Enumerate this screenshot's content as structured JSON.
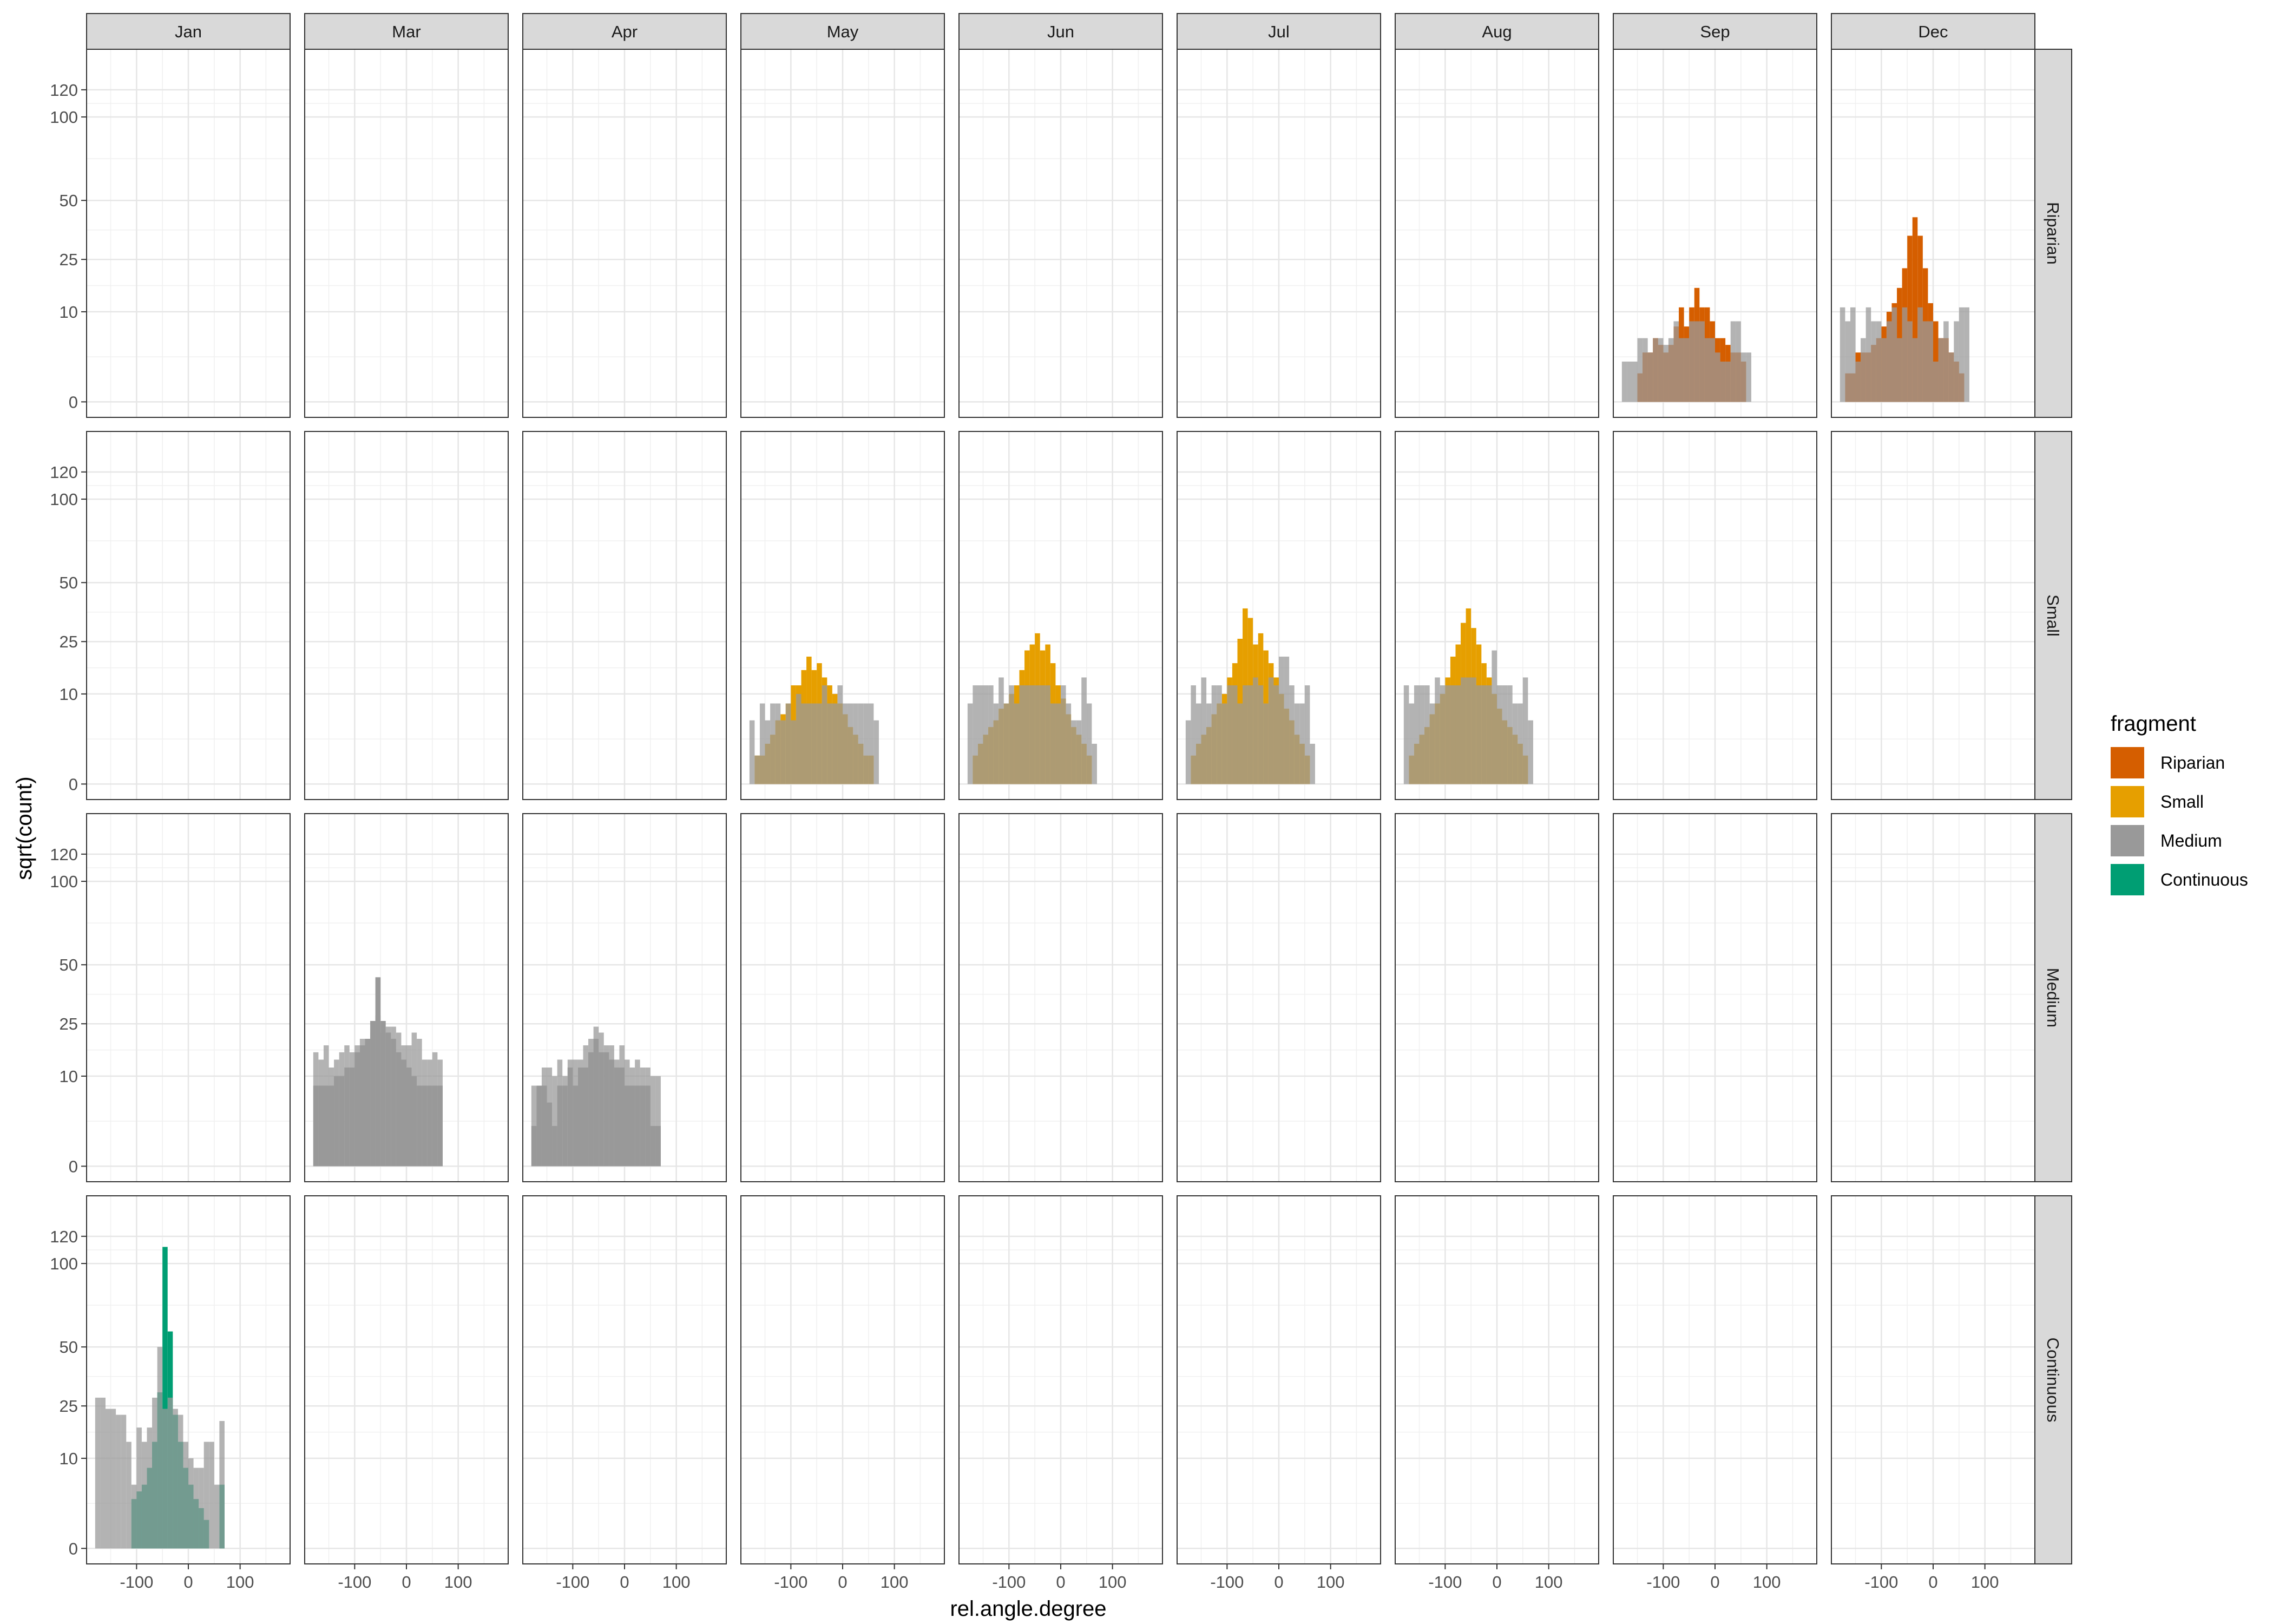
{
  "chart_data": {
    "type": "histogram-facet",
    "xlabel": "rel.angle.degree",
    "ylabel": "sqrt(count)",
    "y_scale": "sqrt",
    "grid": true,
    "legend_position": "right",
    "legend": {
      "title": "fragment",
      "items": [
        {
          "name": "Riparian",
          "color": "#D55E00"
        },
        {
          "name": "Small",
          "color": "#E69F00"
        },
        {
          "name": "Medium",
          "color": "#999999"
        },
        {
          "name": "Continuous",
          "color": "#009E73"
        }
      ]
    },
    "background_series_color": "#999999",
    "columns": [
      "Jan",
      "Mar",
      "Apr",
      "May",
      "Jun",
      "Jul",
      "Aug",
      "Sep",
      "Dec"
    ],
    "rows": [
      "Riparian",
      "Small",
      "Medium",
      "Continuous"
    ],
    "x_ticks": [
      -100,
      0,
      100
    ],
    "x_tick_labels": [
      "-100",
      "0",
      "100"
    ],
    "xlim": [
      -180,
      180
    ],
    "y_ticks": [
      0,
      10,
      25,
      50,
      100,
      120
    ],
    "y_tick_labels": [
      "0",
      "10",
      "25",
      "50",
      "100",
      "120"
    ],
    "ylim": [
      0,
      140
    ],
    "bin_width": 10,
    "bin_start": -180,
    "panels": [
      {
        "row": "Riparian",
        "col": "Sep",
        "fragment": "Riparian",
        "all": [
          2,
          2,
          2,
          5,
          5,
          3,
          5,
          5,
          4,
          5,
          8,
          5,
          5,
          8,
          8,
          8,
          5,
          5,
          3,
          2,
          2,
          8,
          8,
          3,
          3
        ],
        "own": [
          0,
          0,
          0,
          1,
          3,
          3,
          5,
          4,
          3,
          4,
          7,
          11,
          7,
          11,
          16,
          11,
          11,
          8,
          5,
          5,
          4,
          3,
          3,
          2,
          0
        ]
      },
      {
        "row": "Riparian",
        "col": "Dec",
        "fragment": "Riparian",
        "all": [
          11,
          8,
          11,
          2,
          5,
          11,
          8,
          8,
          5,
          8,
          11,
          5,
          11,
          8,
          5,
          11,
          8,
          8,
          2,
          5,
          8,
          3,
          8,
          11,
          11
        ],
        "own": [
          0,
          1,
          1,
          3,
          3,
          3,
          4,
          5,
          7,
          10,
          12,
          16,
          22,
          34,
          42,
          34,
          22,
          12,
          8,
          5,
          5,
          3,
          2,
          1,
          0
        ]
      },
      {
        "row": "Small",
        "col": "May",
        "fragment": "Small",
        "all": [
          5,
          1,
          8,
          5,
          8,
          8,
          5,
          8,
          5,
          10,
          8,
          8,
          8,
          8,
          12,
          8,
          8,
          12,
          8,
          8,
          8,
          8,
          8,
          8,
          5
        ],
        "own": [
          0,
          1,
          1,
          2,
          3,
          5,
          6,
          8,
          12,
          12,
          16,
          20,
          16,
          18,
          14,
          12,
          10,
          8,
          6,
          4,
          3,
          2,
          1,
          1,
          0
        ]
      },
      {
        "row": "Small",
        "col": "Jun",
        "fragment": "Small",
        "all": [
          8,
          12,
          12,
          12,
          12,
          8,
          14,
          8,
          12,
          8,
          12,
          12,
          12,
          12,
          12,
          12,
          8,
          8,
          12,
          8,
          5,
          5,
          14,
          8,
          2
        ],
        "own": [
          0,
          1,
          2,
          3,
          4,
          5,
          7,
          8,
          10,
          12,
          16,
          22,
          24,
          28,
          22,
          24,
          18,
          12,
          9,
          6,
          4,
          3,
          2,
          1,
          0
        ]
      },
      {
        "row": "Small",
        "col": "Jul",
        "fragment": "Small",
        "all": [
          5,
          12,
          8,
          14,
          8,
          12,
          12,
          8,
          12,
          12,
          8,
          12,
          12,
          14,
          12,
          8,
          14,
          12,
          20,
          20,
          12,
          8,
          8,
          12,
          2
        ],
        "own": [
          0,
          1,
          2,
          3,
          4,
          6,
          8,
          10,
          14,
          18,
          26,
          38,
          34,
          24,
          28,
          22,
          18,
          14,
          10,
          7,
          5,
          3,
          2,
          1,
          0
        ]
      },
      {
        "row": "Small",
        "col": "Aug",
        "fragment": "Small",
        "all": [
          12,
          8,
          12,
          12,
          12,
          8,
          14,
          12,
          12,
          12,
          12,
          14,
          14,
          14,
          12,
          12,
          12,
          22,
          12,
          12,
          12,
          8,
          8,
          14,
          5
        ],
        "own": [
          0,
          1,
          2,
          3,
          4,
          6,
          8,
          10,
          14,
          20,
          24,
          32,
          38,
          30,
          24,
          18,
          14,
          10,
          7,
          5,
          4,
          3,
          2,
          1,
          0
        ]
      },
      {
        "row": "Medium",
        "col": "Mar",
        "fragment": "Medium",
        "all": [
          16,
          14,
          18,
          12,
          14,
          16,
          18,
          16,
          18,
          20,
          18,
          22,
          28,
          22,
          24,
          24,
          22,
          18,
          18,
          22,
          20,
          14,
          14,
          16,
          14
        ],
        "own": [
          8,
          8,
          8,
          8,
          10,
          10,
          12,
          12,
          16,
          18,
          20,
          26,
          44,
          26,
          22,
          20,
          16,
          14,
          12,
          10,
          8,
          8,
          8,
          8,
          8
        ]
      },
      {
        "row": "Medium",
        "col": "Apr",
        "fragment": "Medium",
        "all": [
          8,
          8,
          12,
          12,
          10,
          14,
          10,
          14,
          14,
          14,
          18,
          20,
          24,
          22,
          18,
          18,
          14,
          18,
          14,
          12,
          14,
          12,
          12,
          10,
          10
        ],
        "own": [
          2,
          8,
          8,
          5,
          2,
          8,
          8,
          12,
          8,
          12,
          12,
          16,
          20,
          16,
          16,
          14,
          12,
          12,
          8,
          8,
          8,
          8,
          8,
          2,
          2
        ]
      },
      {
        "row": "Continuous",
        "col": "Jan",
        "fragment": "Continuous",
        "all": [
          28,
          28,
          24,
          24,
          22,
          22,
          14,
          5,
          18,
          14,
          18,
          28,
          50,
          24,
          28,
          24,
          22,
          14,
          10,
          8,
          8,
          14,
          14,
          5,
          20
        ],
        "own": [
          0,
          0,
          0,
          0,
          0,
          0,
          0,
          3,
          4,
          5,
          8,
          14,
          30,
          112,
          58,
          22,
          14,
          8,
          5,
          3,
          2,
          1,
          0,
          0,
          5
        ]
      }
    ]
  }
}
